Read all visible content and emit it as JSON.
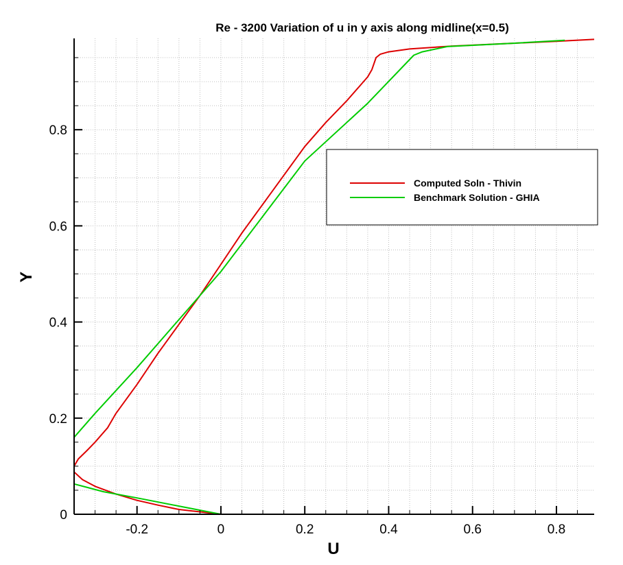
{
  "chart_data": {
    "type": "line",
    "title": "Re - 3200 Variation of u in y axis along midline(x=0.5)",
    "xlabel": "U",
    "ylabel": "Y",
    "xlim": [
      -0.35,
      0.89
    ],
    "ylim": [
      0,
      0.99
    ],
    "x_ticks": [
      -0.2,
      0,
      0.2,
      0.4,
      0.6,
      0.8
    ],
    "x_tick_labels": [
      "-0.2",
      "0",
      "0.2",
      "0.4",
      "0.6",
      "0.8"
    ],
    "y_ticks": [
      0,
      0.2,
      0.4,
      0.6,
      0.8
    ],
    "y_tick_labels": [
      "0",
      "0.2",
      "0.4",
      "0.6",
      "0.8"
    ],
    "grid": true,
    "legend_position": "right",
    "series": [
      {
        "name": "Computed Soln - Thivin",
        "color": "#dd0000",
        "points": [
          [
            0,
            0
          ],
          [
            -0.05,
            0.005
          ],
          [
            -0.1,
            0.01
          ],
          [
            -0.15,
            0.019
          ],
          [
            -0.2,
            0.029
          ],
          [
            -0.25,
            0.042
          ],
          [
            -0.3,
            0.058
          ],
          [
            -0.33,
            0.072
          ],
          [
            -0.35,
            0.088
          ],
          [
            -0.35,
            0.1
          ],
          [
            -0.34,
            0.115
          ],
          [
            -0.32,
            0.132
          ],
          [
            -0.3,
            0.15
          ],
          [
            -0.27,
            0.18
          ],
          [
            -0.25,
            0.21
          ],
          [
            -0.2,
            0.27
          ],
          [
            -0.15,
            0.335
          ],
          [
            -0.1,
            0.395
          ],
          [
            -0.05,
            0.455
          ],
          [
            0,
            0.52
          ],
          [
            0.05,
            0.585
          ],
          [
            0.1,
            0.645
          ],
          [
            0.15,
            0.705
          ],
          [
            0.2,
            0.765
          ],
          [
            0.25,
            0.815
          ],
          [
            0.3,
            0.86
          ],
          [
            0.33,
            0.89
          ],
          [
            0.35,
            0.91
          ],
          [
            0.36,
            0.925
          ],
          [
            0.37,
            0.95
          ],
          [
            0.38,
            0.957
          ],
          [
            0.4,
            0.962
          ],
          [
            0.45,
            0.968
          ],
          [
            0.55,
            0.974
          ],
          [
            0.7,
            0.98
          ],
          [
            0.8,
            0.984
          ],
          [
            0.89,
            0.988
          ]
        ]
      },
      {
        "name": "Benchmark Solution - GHIA",
        "color": "#00cc00",
        "points": [
          [
            0,
            0
          ],
          [
            -0.1,
            0.017
          ],
          [
            -0.2,
            0.034
          ],
          [
            -0.28,
            0.047
          ],
          [
            -0.35,
            0.063
          ],
          [
            -0.35,
            0.16
          ],
          [
            -0.3,
            0.21
          ],
          [
            -0.2,
            0.305
          ],
          [
            -0.1,
            0.405
          ],
          [
            0,
            0.505
          ],
          [
            0.1,
            0.62
          ],
          [
            0.2,
            0.735
          ],
          [
            0.35,
            0.855
          ],
          [
            0.46,
            0.955
          ],
          [
            0.48,
            0.962
          ],
          [
            0.54,
            0.973
          ],
          [
            0.7,
            0.98
          ],
          [
            0.82,
            0.986
          ]
        ]
      }
    ]
  }
}
